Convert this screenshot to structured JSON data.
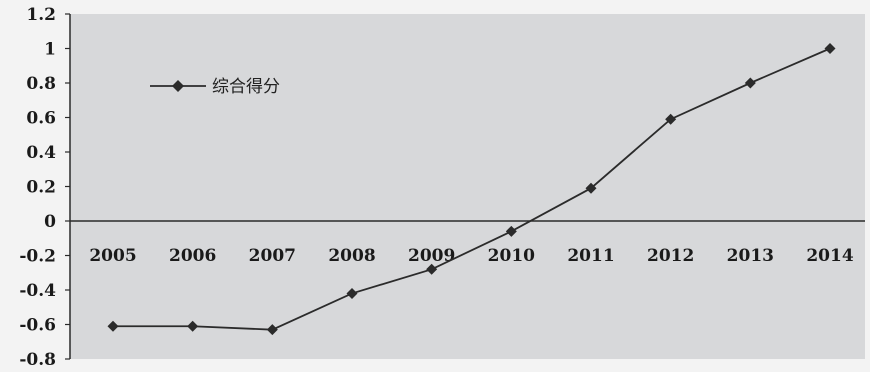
{
  "chart_data": {
    "type": "line",
    "categories": [
      "2005",
      "2006",
      "2007",
      "2008",
      "2009",
      "2010",
      "2011",
      "2012",
      "2013",
      "2014"
    ],
    "series": [
      {
        "name": "综合得分",
        "values": [
          -0.61,
          -0.61,
          -0.63,
          -0.42,
          -0.28,
          -0.06,
          0.19,
          0.59,
          0.8,
          1.0
        ],
        "marker": "diamond",
        "color": "#2b2b2b"
      }
    ],
    "ylim": [
      -0.8,
      1.2
    ],
    "yticks": [
      "1.2",
      "1",
      "0.8",
      "0.6",
      "0.4",
      "0.2",
      "0",
      "-0.2",
      "-0.4",
      "-0.6",
      "-0.8"
    ],
    "xlabel": "",
    "ylabel": "",
    "title": "",
    "grid": false,
    "legend_position": "top-left",
    "plot_background": "#d7d8da",
    "page_background": "#f3f3f3"
  }
}
